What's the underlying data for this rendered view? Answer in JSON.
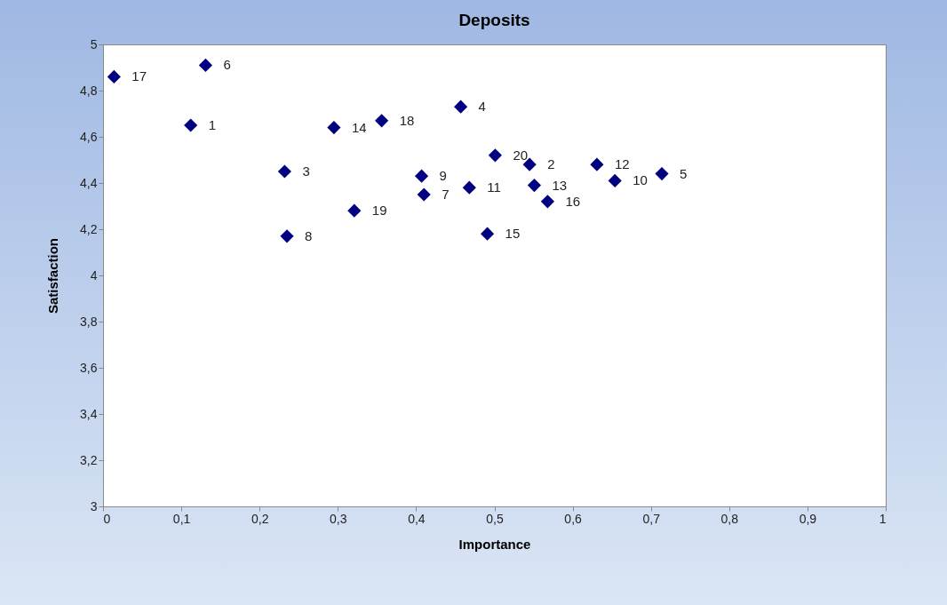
{
  "chart_data": {
    "type": "scatter",
    "title": "Deposits",
    "xlabel": "Importance",
    "ylabel": "Satisfaction",
    "color": "#000080",
    "marker": "diamond",
    "x": [
      0.112,
      0.545,
      0.232,
      0.457,
      0.714,
      0.131,
      0.41,
      0.235,
      0.407,
      0.654,
      0.468,
      0.631,
      0.551,
      0.295,
      0.491,
      0.568,
      0.014,
      0.356,
      0.321,
      0.501
    ],
    "values": [
      4.65,
      4.48,
      4.45,
      4.73,
      4.44,
      4.91,
      4.35,
      4.17,
      4.43,
      4.41,
      4.38,
      4.48,
      4.39,
      4.64,
      4.18,
      4.32,
      4.86,
      4.67,
      4.28,
      4.52
    ],
    "xlim": [
      0,
      1
    ],
    "ylim": [
      3,
      5
    ],
    "xticks": [
      0,
      {
        "value": 0.1,
        "label": "0,1"
      },
      {
        "value": 0.2,
        "label": "0,2"
      },
      {
        "value": 0.3,
        "label": "0,3"
      },
      {
        "value": 0.4,
        "label": "0,4"
      },
      {
        "value": 0.5,
        "label": "0,5"
      },
      {
        "value": 0.6,
        "label": "0,6"
      },
      {
        "value": 0.7,
        "label": "0,7"
      },
      {
        "value": 0.8,
        "label": "0,8"
      },
      {
        "value": 0.9,
        "label": "0,9"
      },
      1
    ],
    "yticks": [
      3,
      {
        "value": 3.2,
        "label": "3,2"
      },
      {
        "value": 3.4,
        "label": "3,4"
      },
      {
        "value": 3.6,
        "label": "3,6"
      },
      {
        "value": 3.8,
        "label": "3,8"
      },
      4,
      {
        "value": 4.2,
        "label": "4,2"
      },
      {
        "value": 4.4,
        "label": "4,4"
      },
      {
        "value": 4.6,
        "label": "4,6"
      },
      {
        "value": 4.8,
        "label": "4,8"
      },
      5
    ],
    "annotations": [
      {
        "text": "1",
        "x": 0.112,
        "y": 4.65
      },
      {
        "text": "2",
        "x": 0.545,
        "y": 4.48
      },
      {
        "text": "3",
        "x": 0.232,
        "y": 4.45
      },
      {
        "text": "4",
        "x": 0.457,
        "y": 4.73
      },
      {
        "text": "5",
        "x": 0.714,
        "y": 4.44
      },
      {
        "text": "6",
        "x": 0.131,
        "y": 4.91
      },
      {
        "text": "7",
        "x": 0.41,
        "y": 4.35
      },
      {
        "text": "8",
        "x": 0.235,
        "y": 4.17
      },
      {
        "text": "9",
        "x": 0.407,
        "y": 4.43
      },
      {
        "text": "10",
        "x": 0.654,
        "y": 4.41
      },
      {
        "text": "11",
        "x": 0.468,
        "y": 4.38
      },
      {
        "text": "12",
        "x": 0.631,
        "y": 4.48
      },
      {
        "text": "13",
        "x": 0.551,
        "y": 4.39
      },
      {
        "text": "14",
        "x": 0.295,
        "y": 4.64
      },
      {
        "text": "15",
        "x": 0.491,
        "y": 4.18
      },
      {
        "text": "16",
        "x": 0.568,
        "y": 4.32
      },
      {
        "text": "17",
        "x": 0.014,
        "y": 4.86
      },
      {
        "text": "18",
        "x": 0.356,
        "y": 4.67
      },
      {
        "text": "19",
        "x": 0.321,
        "y": 4.28
      },
      {
        "text": "20",
        "x": 0.501,
        "y": 4.52
      }
    ]
  }
}
